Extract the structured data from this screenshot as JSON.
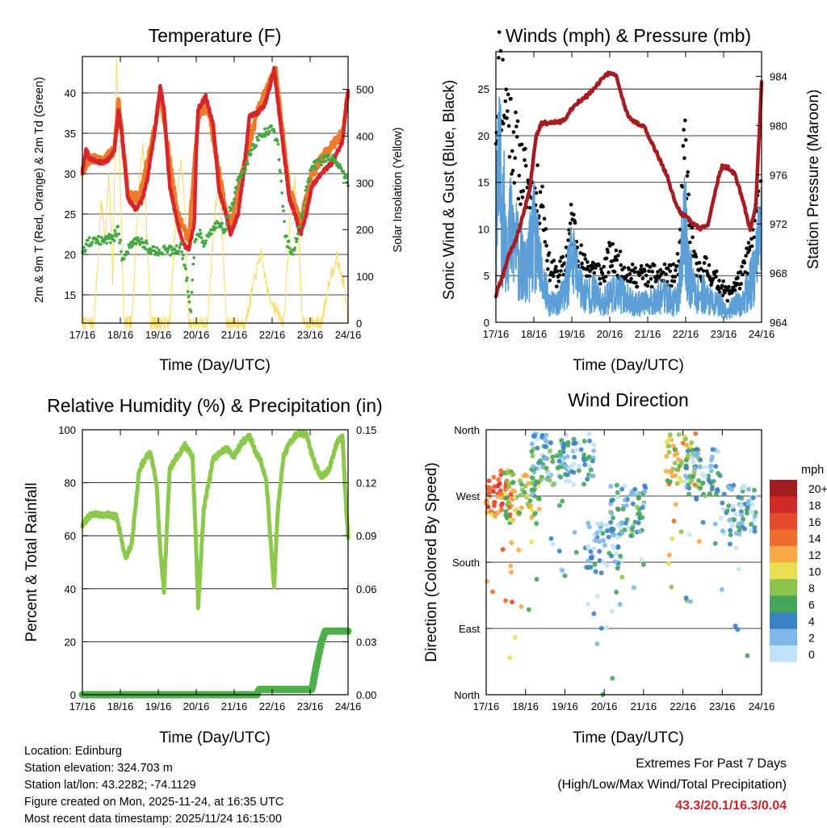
{
  "panels": {
    "temperature": {
      "title": "Temperature (F)",
      "ylabel_left": "2m & 9m T (Red, Orange) & 2m Td (Green)",
      "ylabel_right": "Solar Insolation (Yellow)",
      "xlabel": "Time (Day/UTC)",
      "yticks_left": [
        "15",
        "20",
        "25",
        "30",
        "35",
        "40"
      ],
      "yticks_right": [
        "0",
        "100",
        "200",
        "300",
        "400",
        "500"
      ]
    },
    "wind": {
      "title": "Winds (mph) & Pressure (mb)",
      "ylabel_left": "Sonic Wind & Gust (Blue, Black)",
      "ylabel_right": "Station Pressure (Maroon)",
      "xlabel": "Time (Day/UTC)",
      "yticks_left": [
        "0",
        "5",
        "10",
        "15",
        "20",
        "25"
      ],
      "yticks_right": [
        "964",
        "968",
        "972",
        "976",
        "980",
        "984"
      ]
    },
    "humidity": {
      "title": "Relative Humidity (%) & Precipitation (in)",
      "ylabel_left": "Percent & Total Rainfall",
      "xlabel": "Time (Day/UTC)",
      "yticks_left": [
        "0",
        "20",
        "40",
        "60",
        "80",
        "100"
      ],
      "yticks_right": [
        "0.00",
        "0.03",
        "0.06",
        "0.09",
        "0.12",
        "0.15"
      ]
    },
    "direction": {
      "title": "Wind Direction",
      "ylabel_left": "Direction (Colored By Speed)",
      "xlabel": "Time (Day/UTC)",
      "yticks_left": [
        "North",
        "West",
        "South",
        "East",
        "North"
      ]
    }
  },
  "xticks": [
    "17/16",
    "18/16",
    "19/16",
    "20/16",
    "21/16",
    "22/16",
    "23/16",
    "24/16"
  ],
  "legend": {
    "title": "mph",
    "labels": [
      "20+",
      "18",
      "16",
      "14",
      "12",
      "10",
      "8",
      "6",
      "4",
      "2",
      "0"
    ],
    "colors": [
      "#a01c1e",
      "#d42a27",
      "#e64a2b",
      "#f26d2b",
      "#f9a846",
      "#e7e052",
      "#8cc34f",
      "#47a65a",
      "#3b82c4",
      "#7fb8e6",
      "#bfe2f7"
    ]
  },
  "info": {
    "location": "Location: Edinburg",
    "elevation": "Station elevation: 324.703 m",
    "latlon": "Station lat/lon: 43.2282; -74.1129",
    "created": "Figure created on Mon, 2025-11-24, at 16:35 UTC",
    "recent": "Most recent data timestamp: 2025/11/24 16:15:00"
  },
  "extremes": {
    "heading": "Extremes For Past 7 Days",
    "subheading": "(High/Low/Max Wind/Total Precipitation)",
    "values": "43.3/20.1/16.3/0.04"
  },
  "colors": {
    "temp_2m": "#d6262b",
    "temp_9m": "#f07a2c",
    "dewpoint": "#43a843",
    "solar": "#f7dc6a",
    "gust": "#000000",
    "wind": "#5b9fd6",
    "pressure": "#a51d22",
    "rh": "#8cc84b",
    "precip": "#4caf47"
  },
  "chart_data": [
    {
      "type": "line",
      "title": "Temperature (F)",
      "xlabel": "Time (Day/UTC)",
      "ylabel": "2m & 9m T (Red, Orange) & 2m Td (Green)",
      "ylabel_right": "Solar Insolation (Yellow)",
      "ylim": [
        11.5,
        44.5
      ],
      "ylim_right": [
        0,
        570
      ],
      "xlim_days": [
        0,
        7
      ],
      "series": [
        {
          "name": "2m T",
          "x": [
            0,
            0.1,
            0.2,
            0.3,
            0.4,
            0.55,
            0.7,
            0.85,
            0.95,
            1.05,
            1.2,
            1.4,
            1.55,
            1.7,
            1.9,
            2.05,
            2.15,
            2.3,
            2.5,
            2.65,
            2.8,
            2.95,
            3.0,
            3.05,
            3.25,
            3.45,
            3.6,
            3.75,
            3.9,
            4.1,
            4.25,
            4.4,
            4.6,
            4.8,
            4.95,
            5.05,
            5.2,
            5.45,
            5.6,
            5.75,
            5.9,
            6.05,
            6.3,
            6.6,
            6.85,
            7.0
          ],
          "y": [
            30.3,
            33,
            31.8,
            31.7,
            31.5,
            31.4,
            31.8,
            33,
            38,
            34.5,
            27,
            25.6,
            26.5,
            29,
            35,
            40.8,
            38,
            28.5,
            24,
            21.4,
            20.5,
            24,
            33,
            38,
            39.5,
            36,
            28,
            25.5,
            22.5,
            25,
            30,
            37,
            37.5,
            38.5,
            41,
            43,
            37,
            27,
            25,
            22.5,
            25,
            28.5,
            30,
            31.5,
            34,
            40.5
          ]
        },
        {
          "name": "9m T",
          "x": [
            0,
            0.2,
            0.5,
            0.85,
            0.95,
            1.2,
            1.5,
            1.9,
            2.05,
            2.5,
            2.8,
            3.05,
            3.3,
            3.75,
            3.9,
            4.25,
            4.6,
            4.95,
            5.1,
            5.45,
            5.75,
            6.05,
            6.4,
            6.85,
            7.0
          ],
          "y": [
            30.3,
            32,
            31.5,
            33,
            39,
            27.5,
            27,
            35.5,
            40,
            25,
            21.8,
            37,
            38.5,
            26,
            23.5,
            31,
            37.5,
            41.5,
            42.5,
            28,
            24,
            30,
            32.5,
            35,
            40
          ]
        },
        {
          "name": "2m Td",
          "x": [
            0,
            0.15,
            0.35,
            0.6,
            0.8,
            0.95,
            1.05,
            1.2,
            1.4,
            1.6,
            1.8,
            2.0,
            2.2,
            2.4,
            2.6,
            2.75,
            2.85,
            2.95,
            3.05,
            3.2,
            3.4,
            3.6,
            3.75,
            3.95,
            4.1,
            4.3,
            4.5,
            4.75,
            4.95,
            5.05,
            5.15,
            5.35,
            5.55,
            5.75,
            5.9,
            6.05,
            6.3,
            6.5,
            6.7,
            6.9,
            7.0
          ],
          "y": [
            20,
            21.5,
            21.5,
            22,
            22,
            23,
            19.5,
            20.5,
            21.5,
            21.5,
            20.5,
            20.5,
            20.5,
            20.5,
            21,
            17,
            12.5,
            21,
            23,
            21.5,
            23,
            24,
            23,
            26.5,
            29,
            31,
            33.5,
            35,
            35.5,
            35,
            34,
            22,
            20,
            24,
            28,
            31,
            31.5,
            32,
            31.5,
            30,
            28.5
          ]
        },
        {
          "name": "Solar Insolation",
          "axis": "right",
          "x": [
            0,
            0.3,
            0.4,
            0.5,
            0.6,
            0.7,
            0.8,
            0.9,
            1.0,
            1.1,
            1.3,
            1.4,
            1.5,
            1.6,
            1.7,
            1.8,
            2.3,
            2.4,
            2.5,
            2.6,
            2.7,
            2.8,
            3.3,
            3.4,
            3.5,
            3.6,
            3.7,
            3.8,
            4.3,
            4.5,
            4.7,
            4.9,
            5.3,
            5.4,
            5.5,
            5.6,
            5.7,
            5.8,
            6.3,
            6.5,
            6.7,
            6.9,
            7.0
          ],
          "y": [
            0,
            0,
            120,
            260,
            180,
            320,
            90,
            570,
            300,
            0,
            0,
            150,
            310,
            380,
            200,
            0,
            0,
            140,
            280,
            350,
            250,
            0,
            0,
            130,
            240,
            310,
            160,
            0,
            0,
            80,
            150,
            60,
            0,
            120,
            260,
            300,
            190,
            0,
            0,
            90,
            140,
            80,
            0
          ]
        }
      ]
    },
    {
      "type": "line",
      "title": "Winds (mph) & Pressure (mb)",
      "xlabel": "Time (Day/UTC)",
      "ylabel": "Sonic Wind & Gust (Blue, Black)",
      "ylabel_right": "Station Pressure (Maroon)",
      "ylim": [
        0,
        29
      ],
      "ylim_right": [
        964,
        986
      ],
      "xlim_days": [
        0,
        7
      ],
      "series": [
        {
          "name": "Gust",
          "x": [
            0,
            0.1,
            0.2,
            0.3,
            0.45,
            0.6,
            0.8,
            1.0,
            1.2,
            1.4,
            1.6,
            1.8,
            2.0,
            2.3,
            2.6,
            2.8,
            3.0,
            3.3,
            3.6,
            4.0,
            4.4,
            4.7,
            4.85,
            4.95,
            5.0,
            5.1,
            5.3,
            5.5,
            5.7,
            5.9,
            6.1,
            6.3,
            6.5,
            6.7,
            6.9,
            7.0
          ],
          "y": [
            22,
            27,
            24,
            23,
            20,
            17,
            15,
            13,
            14,
            6,
            5,
            6,
            11,
            6,
            6,
            5,
            7,
            6,
            5,
            5,
            5,
            5,
            7,
            18,
            19,
            10,
            5,
            6,
            5,
            4,
            3,
            4,
            5,
            8,
            12,
            15
          ]
        },
        {
          "name": "Wind",
          "x": [
            0,
            0.1,
            0.2,
            0.3,
            0.45,
            0.6,
            0.8,
            1.0,
            1.2,
            1.4,
            1.6,
            1.8,
            2.0,
            2.3,
            2.6,
            2.8,
            3.0,
            3.3,
            3.6,
            4.0,
            4.4,
            4.7,
            4.85,
            4.95,
            5.0,
            5.1,
            5.3,
            5.5,
            5.7,
            5.9,
            6.1,
            6.3,
            6.5,
            6.7,
            6.9,
            7.0
          ],
          "y": [
            12,
            15,
            11,
            10,
            9,
            7,
            5,
            9,
            5,
            2,
            2,
            3,
            7,
            3,
            3,
            2,
            3,
            3,
            2,
            2,
            3,
            2,
            4,
            10,
            9,
            5,
            3,
            3,
            2,
            2,
            1,
            2,
            2,
            4,
            7,
            9
          ]
        },
        {
          "name": "Station Pressure",
          "axis": "right",
          "x": [
            0,
            0.2,
            0.35,
            0.5,
            0.7,
            0.9,
            1.05,
            1.2,
            1.5,
            1.8,
            2.0,
            2.2,
            2.4,
            2.6,
            2.8,
            3.0,
            3.15,
            3.35,
            3.5,
            3.7,
            3.9,
            4.2,
            4.5,
            4.75,
            4.9,
            5.05,
            5.2,
            5.4,
            5.6,
            5.8,
            5.95,
            6.1,
            6.3,
            6.5,
            6.7,
            6.85,
            7.0
          ],
          "y": [
            966.2,
            968,
            969.5,
            970.5,
            972.5,
            975,
            979,
            980.2,
            980.2,
            980.4,
            981.4,
            982,
            982.4,
            983,
            983.8,
            984.3,
            984.2,
            982,
            980.6,
            980.2,
            980,
            978,
            976,
            973.5,
            972.8,
            972.5,
            972,
            971.6,
            972,
            975,
            976.7,
            976.6,
            976,
            974,
            971.5,
            973.5,
            983.5
          ]
        }
      ]
    },
    {
      "type": "line",
      "title": "Relative Humidity (%) & Precipitation (in)",
      "xlabel": "Time (Day/UTC)",
      "ylabel": "Percent & Total Rainfall",
      "ylim": [
        0,
        100
      ],
      "ylim_right": [
        0,
        0.15
      ],
      "xlim_days": [
        0,
        7
      ],
      "series": [
        {
          "name": "RH",
          "x": [
            0,
            0.15,
            0.3,
            0.5,
            0.7,
            0.9,
            1.0,
            1.1,
            1.15,
            1.3,
            1.5,
            1.7,
            1.8,
            1.95,
            2.05,
            2.15,
            2.3,
            2.5,
            2.7,
            2.9,
            3.0,
            3.05,
            3.2,
            3.45,
            3.6,
            3.8,
            4.0,
            4.2,
            4.4,
            4.55,
            4.7,
            4.85,
            4.95,
            5.05,
            5.15,
            5.3,
            5.5,
            5.7,
            5.9,
            6.1,
            6.3,
            6.5,
            6.7,
            6.85,
            6.95,
            7.0
          ],
          "y": [
            64,
            67,
            68,
            68,
            68,
            67,
            61,
            54,
            52,
            57,
            85,
            90,
            91,
            80,
            55,
            39,
            85,
            90,
            94,
            90,
            55,
            33,
            70,
            89,
            91,
            93,
            90,
            95,
            98,
            92,
            88,
            80,
            60,
            40,
            70,
            90,
            96,
            99,
            98,
            88,
            82,
            85,
            95,
            98,
            70,
            60
          ]
        },
        {
          "name": "Total Precipitation",
          "axis": "right",
          "x": [
            0,
            4.6,
            4.65,
            5.0,
            5.7,
            6.05,
            6.15,
            6.2,
            6.3,
            6.4,
            7.0
          ],
          "y": [
            0,
            0,
            0.003,
            0.003,
            0.003,
            0.003,
            0.015,
            0.02,
            0.03,
            0.036,
            0.036
          ]
        }
      ]
    },
    {
      "type": "scatter",
      "title": "Wind Direction",
      "xlabel": "Time (Day/UTC)",
      "ylabel": "Direction (Colored By Speed)",
      "yticks": [
        "North",
        "West",
        "South",
        "East",
        "North"
      ],
      "ylim": [
        0,
        360
      ],
      "xlim_days": [
        0,
        7
      ],
      "color_scale": {
        "title": "mph",
        "labels": [
          "20+",
          "18",
          "16",
          "14",
          "12",
          "10",
          "8",
          "6",
          "4",
          "2",
          "0"
        ]
      },
      "clusters": [
        {
          "x_center": 0.3,
          "direction": 270,
          "typical_speed": 14
        },
        {
          "x_center": 0.9,
          "direction": 270,
          "typical_speed": 9
        },
        {
          "x_center": 1.6,
          "direction": 320,
          "typical_speed": 4
        },
        {
          "x_center": 2.3,
          "direction": 320,
          "typical_speed": 3
        },
        {
          "x_center": 3.0,
          "direction": 200,
          "typical_speed": 3
        },
        {
          "x_center": 3.6,
          "direction": 250,
          "typical_speed": 4
        },
        {
          "x_center": 5.0,
          "direction": 320,
          "typical_speed": 10
        },
        {
          "x_center": 5.5,
          "direction": 300,
          "typical_speed": 4
        },
        {
          "x_center": 6.4,
          "direction": 250,
          "typical_speed": 3
        }
      ]
    }
  ]
}
